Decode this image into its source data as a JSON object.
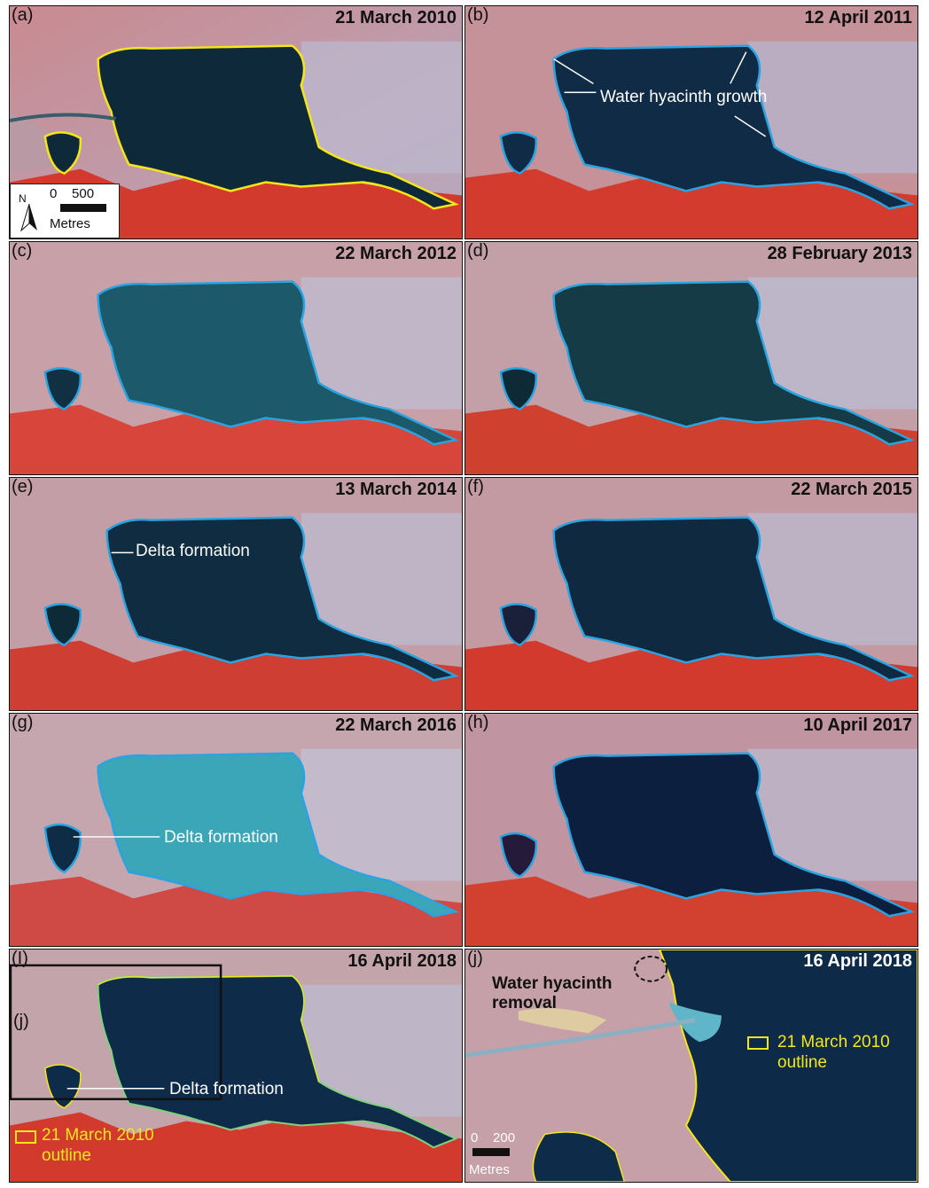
{
  "panels": [
    {
      "label": "(a)",
      "date": "21 March 2010"
    },
    {
      "label": "(b)",
      "date": "12 April 2011"
    },
    {
      "label": "(c)",
      "date": "22 March 2012"
    },
    {
      "label": "(d)",
      "date": "28 February 2013"
    },
    {
      "label": "(e)",
      "date": "13 March 2014"
    },
    {
      "label": "(f)",
      "date": "22 March 2015"
    },
    {
      "label": "(g)",
      "date": "22 March 2016"
    },
    {
      "label": "(h)",
      "date": "10 April 2017"
    },
    {
      "label": "(I)",
      "date": "16 April 2018"
    },
    {
      "label": "(j)",
      "date": "16 April 2018"
    }
  ],
  "annotations": {
    "water_hyacinth_growth": "Water hyacinth growth",
    "delta_formation": "Delta formation",
    "water_hyacinth_removal_line1": "Water hyacinth",
    "water_hyacinth_removal_line2": "removal",
    "inset_label": "(j)",
    "legend_line1": "21 March 2010",
    "legend_line2": "outline"
  },
  "scale_bar_a": {
    "north": "N",
    "ticks": "0    500",
    "unit": "Metres"
  },
  "scale_bar_j": {
    "ticks": "0    200",
    "unit": "Metres"
  },
  "colors": {
    "outline_2010": "#f5e61a",
    "outline_water": "#2aa3e0",
    "vegetation": "#d23a2e",
    "urban": "#cfa8b4"
  }
}
